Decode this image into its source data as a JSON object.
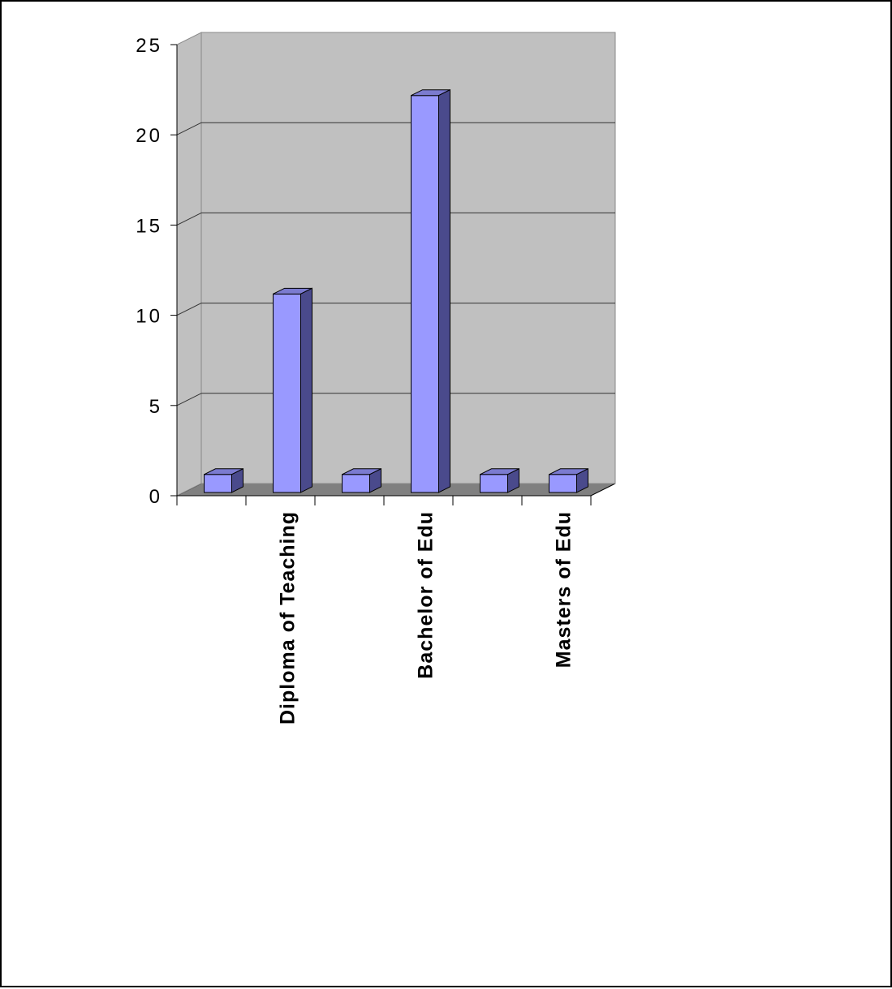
{
  "chart_data": {
    "type": "bar",
    "style": "3d-column",
    "categories": [
      "",
      "Diploma of Teaching",
      "",
      "Bachelor of Edu",
      "",
      "Masters of Edu"
    ],
    "values": [
      1,
      11,
      1,
      22,
      1,
      1
    ],
    "title": "",
    "xlabel": "",
    "ylabel": "",
    "ylim": [
      0,
      25
    ],
    "yticks": [
      "0",
      "5",
      "10",
      "15",
      "20",
      "25"
    ],
    "grid": true,
    "legend": "none",
    "colors": {
      "bar_front": "#9999FF",
      "bar_top": "#7B7BD0",
      "bar_side": "#4A4A8C",
      "wall": "#C0C0C0",
      "floor": "#808080",
      "gridline": "#333333"
    }
  }
}
